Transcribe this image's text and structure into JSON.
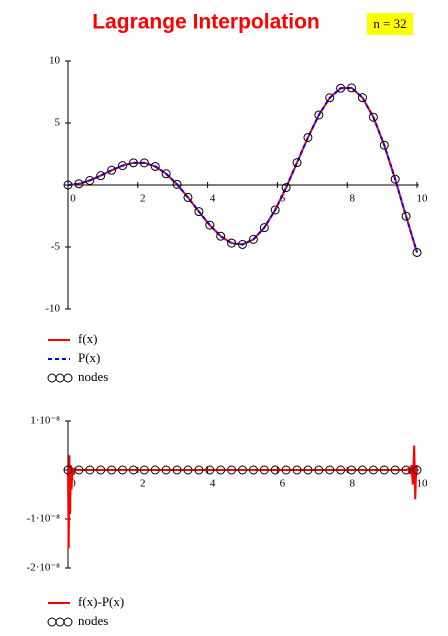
{
  "chart_data": [
    {
      "type": "line",
      "title": "Lagrange Interpolation",
      "annotation": "n = 32",
      "x": [
        0,
        0.3125,
        0.625,
        0.9375,
        1.25,
        1.5625,
        1.875,
        2.1875,
        2.5,
        2.8125,
        3.125,
        3.4375,
        3.75,
        4.0625,
        4.375,
        4.6875,
        5,
        5.3125,
        5.625,
        5.9375,
        6.25,
        6.5625,
        6.875,
        7.1875,
        7.5,
        7.8125,
        8.125,
        8.4375,
        8.75,
        9.0625,
        9.375,
        9.6875,
        10
      ],
      "series": [
        {
          "name": "f(x)",
          "color": "#ff0000",
          "style": "solid",
          "values": [
            0,
            0.0961,
            0.3657,
            0.7556,
            1.1862,
            1.5625,
            1.7889,
            1.7857,
            1.4962,
            0.9057,
            0.0519,
            -1.0026,
            -2.1433,
            -3.2341,
            -4.1285,
            -4.6861,
            -4.7946,
            -4.3847,
            -3.44,
            -2.0119,
            -0.2074,
            1.8092,
            3.8354,
            5.6477,
            7.035,
            7.8059,
            7.8301,
            7.0457,
            5.4663,
            3.2071,
            0.4666,
            -2.5188,
            -5.4402
          ]
        },
        {
          "name": "P(x)",
          "color": "#0000ff",
          "style": "dashed",
          "values": [
            0,
            0.0961,
            0.3657,
            0.7556,
            1.1862,
            1.5625,
            1.7889,
            1.7857,
            1.4962,
            0.9057,
            0.0519,
            -1.0026,
            -2.1433,
            -3.2341,
            -4.1285,
            -4.6861,
            -4.7946,
            -4.3847,
            -3.44,
            -2.0119,
            -0.2074,
            1.8092,
            3.8354,
            5.6477,
            7.035,
            7.8059,
            7.8301,
            7.0457,
            5.4663,
            3.2071,
            0.4666,
            -2.5188,
            -5.4402
          ]
        },
        {
          "name": "nodes",
          "color": "#000000",
          "style": "circle",
          "values": [
            0,
            0.0961,
            0.3657,
            0.7556,
            1.1862,
            1.5625,
            1.7889,
            1.7857,
            1.4962,
            0.9057,
            0.0519,
            -1.0026,
            -2.1433,
            -3.2341,
            -4.1285,
            -4.6861,
            -4.7946,
            -4.3847,
            -3.44,
            -2.0119,
            -0.2074,
            1.8092,
            3.8354,
            5.6477,
            7.035,
            7.8059,
            7.8301,
            7.0457,
            5.4663,
            3.2071,
            0.4666,
            -2.5188,
            -5.4402
          ]
        }
      ],
      "xlim": [
        0,
        10
      ],
      "xticks": [
        0,
        2,
        4,
        6,
        8,
        10
      ],
      "ylim": [
        -10,
        10
      ],
      "yticks": [
        -10,
        -5,
        5,
        10
      ]
    },
    {
      "type": "line",
      "series": [
        {
          "name": "f(x)-P(x)",
          "color": "#ff0000",
          "style": "solid",
          "x": [
            0,
            0.02,
            0.04,
            0.06,
            0.08,
            0.1,
            0.13,
            0.16,
            0.2,
            0.25,
            0.3125,
            5,
            9.6875,
            9.75,
            9.8,
            9.84,
            9.88,
            9.92,
            9.95,
            9.98,
            10
          ],
          "values": [
            0,
            -1.6e-08,
            3e-09,
            -9e-09,
            1e-09,
            -4e-09,
            5e-10,
            -1e-09,
            2e-10,
            0,
            0,
            0,
            0,
            2e-10,
            -8e-10,
            1e-09,
            -3e-09,
            5e-09,
            -6e-09,
            1e-09,
            0
          ]
        },
        {
          "name": "nodes",
          "color": "#000000",
          "style": "circle",
          "x": [
            0,
            0.3125,
            0.625,
            0.9375,
            1.25,
            1.5625,
            1.875,
            2.1875,
            2.5,
            2.8125,
            3.125,
            3.4375,
            3.75,
            4.0625,
            4.375,
            4.6875,
            5,
            5.3125,
            5.625,
            5.9375,
            6.25,
            6.5625,
            6.875,
            7.1875,
            7.5,
            7.8125,
            8.125,
            8.4375,
            8.75,
            9.0625,
            9.375,
            9.6875,
            10
          ],
          "values": [
            0,
            0,
            0,
            0,
            0,
            0,
            0,
            0,
            0,
            0,
            0,
            0,
            0,
            0,
            0,
            0,
            0,
            0,
            0,
            0,
            0,
            0,
            0,
            0,
            0,
            0,
            0,
            0,
            0,
            0,
            0,
            0,
            0
          ]
        }
      ],
      "xlim": [
        0,
        10
      ],
      "xticks": [
        0,
        2,
        4,
        6,
        8,
        10
      ],
      "ylim": [
        -2e-08,
        1e-08
      ],
      "yticks": [
        {
          "value": 1e-08,
          "label": "1·10⁻⁸"
        },
        {
          "value": -1e-08,
          "label": "-1·10⁻⁸"
        },
        {
          "value": -2e-08,
          "label": "-2·10⁻⁸"
        }
      ]
    }
  ]
}
